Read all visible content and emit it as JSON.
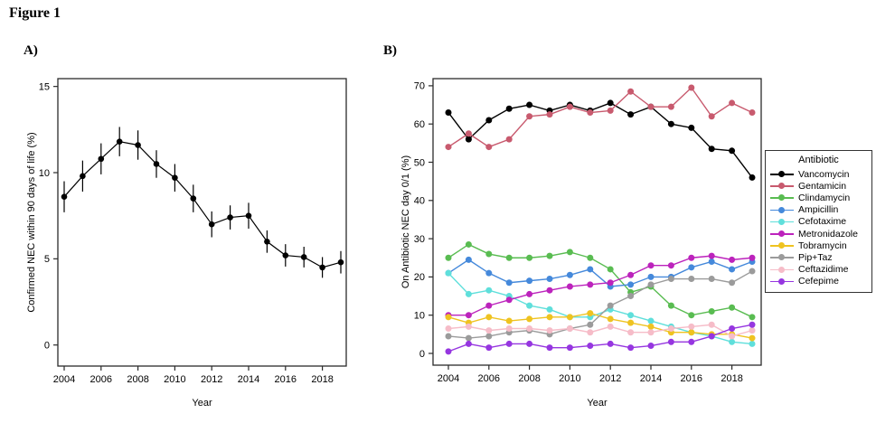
{
  "figure": {
    "label": "Figure 1"
  },
  "panel_a": {
    "label": "A)"
  },
  "panel_b": {
    "label": "B)"
  },
  "legend": {
    "title": "Antibiotic"
  },
  "chart_data": [
    {
      "type": "line",
      "panel": "A",
      "xlabel": "Year",
      "ylabel": "Confirmed NEC within 90 days of life (%)",
      "x": [
        2004,
        2005,
        2006,
        2007,
        2008,
        2009,
        2010,
        2011,
        2012,
        2013,
        2014,
        2015,
        2016,
        2017,
        2018,
        2019
      ],
      "xticks": [
        2004,
        2006,
        2008,
        2010,
        2012,
        2014,
        2016,
        2018
      ],
      "yticks": [
        0,
        5,
        10,
        15
      ],
      "ylim": [
        0,
        15.75
      ],
      "grid": false,
      "series": [
        {
          "name": "Confirmed NEC",
          "color": "#000000",
          "values": [
            8.6,
            9.8,
            10.8,
            11.8,
            11.6,
            10.5,
            9.7,
            8.5,
            7.0,
            7.4,
            7.5,
            6.0,
            5.2,
            5.1,
            4.5,
            4.8
          ],
          "err": [
            0.9,
            0.9,
            0.9,
            0.85,
            0.85,
            0.8,
            0.8,
            0.8,
            0.75,
            0.7,
            0.75,
            0.65,
            0.65,
            0.6,
            0.6,
            0.65
          ]
        }
      ]
    },
    {
      "type": "line",
      "panel": "B",
      "xlabel": "Year",
      "ylabel": "On Antibiotic NEC day 0/1 (%)",
      "x": [
        2004,
        2005,
        2006,
        2007,
        2008,
        2009,
        2010,
        2011,
        2012,
        2013,
        2014,
        2015,
        2016,
        2017,
        2018,
        2019
      ],
      "xticks": [
        2004,
        2006,
        2008,
        2010,
        2012,
        2014,
        2016,
        2018
      ],
      "yticks": [
        0,
        10,
        20,
        30,
        40,
        50,
        60,
        70
      ],
      "ylim": [
        0,
        72.8
      ],
      "grid": false,
      "legend_position": "right",
      "series": [
        {
          "name": "Vancomycin",
          "color": "#000000",
          "values": [
            63,
            56,
            61,
            64,
            65,
            63.5,
            65,
            63.5,
            65.5,
            62.5,
            64.5,
            60,
            59,
            53.5,
            53,
            46
          ]
        },
        {
          "name": "Gentamicin",
          "color": "#C85A6E",
          "values": [
            54,
            57.5,
            54,
            56,
            62,
            62.5,
            64.5,
            63,
            63.5,
            68.5,
            64.5,
            64.5,
            69.5,
            62,
            65.5,
            63
          ]
        },
        {
          "name": "Clindamycin",
          "color": "#59BC51",
          "values": [
            25,
            28.5,
            26,
            25,
            25,
            25.5,
            26.5,
            25,
            22,
            16,
            17.5,
            12.5,
            10,
            11,
            12,
            9.5
          ]
        },
        {
          "name": "Ampicillin",
          "color": "#4589DB",
          "values": [
            21,
            24.5,
            21,
            18.5,
            19,
            19.5,
            20.5,
            22,
            17.5,
            18,
            20,
            20,
            22.5,
            24,
            22,
            24
          ]
        },
        {
          "name": "Cefotaxime",
          "color": "#5FDFDB",
          "values": [
            21,
            15.5,
            16.5,
            15,
            12.5,
            11.5,
            9.5,
            9.5,
            11.5,
            10,
            8.5,
            7,
            5.5,
            4.5,
            3,
            2.5
          ]
        },
        {
          "name": "Metronidazole",
          "color": "#BC23BC",
          "values": [
            10,
            10,
            12.5,
            14,
            15.5,
            16.5,
            17.5,
            18,
            18.5,
            20.5,
            23,
            23,
            25,
            25.5,
            24.5,
            25
          ]
        },
        {
          "name": "Tobramycin",
          "color": "#EFC320",
          "values": [
            9.5,
            8,
            9.5,
            8.5,
            9,
            9.5,
            9.5,
            10.5,
            9,
            8,
            7,
            5.5,
            5.5,
            5,
            5,
            4
          ]
        },
        {
          "name": "Pip+Taz",
          "color": "#9B9B9B",
          "values": [
            4.5,
            4,
            4.5,
            5.5,
            6,
            5,
            6.5,
            7.5,
            12.5,
            15,
            18,
            19.5,
            19.5,
            19.5,
            18.5,
            21.5
          ]
        },
        {
          "name": "Ceftazidime",
          "color": "#F6BCC8",
          "values": [
            6.5,
            7,
            6,
            6.5,
            6.5,
            6,
            6.5,
            5.5,
            7,
            5.5,
            5.5,
            6.5,
            7,
            7.5,
            4.5,
            6
          ]
        },
        {
          "name": "Cefepime",
          "color": "#9636E0",
          "values": [
            0.5,
            2.5,
            1.5,
            2.5,
            2.5,
            1.5,
            1.5,
            2,
            2.5,
            1.5,
            2,
            3,
            3,
            4.5,
            6.5,
            7.5
          ]
        }
      ]
    }
  ]
}
